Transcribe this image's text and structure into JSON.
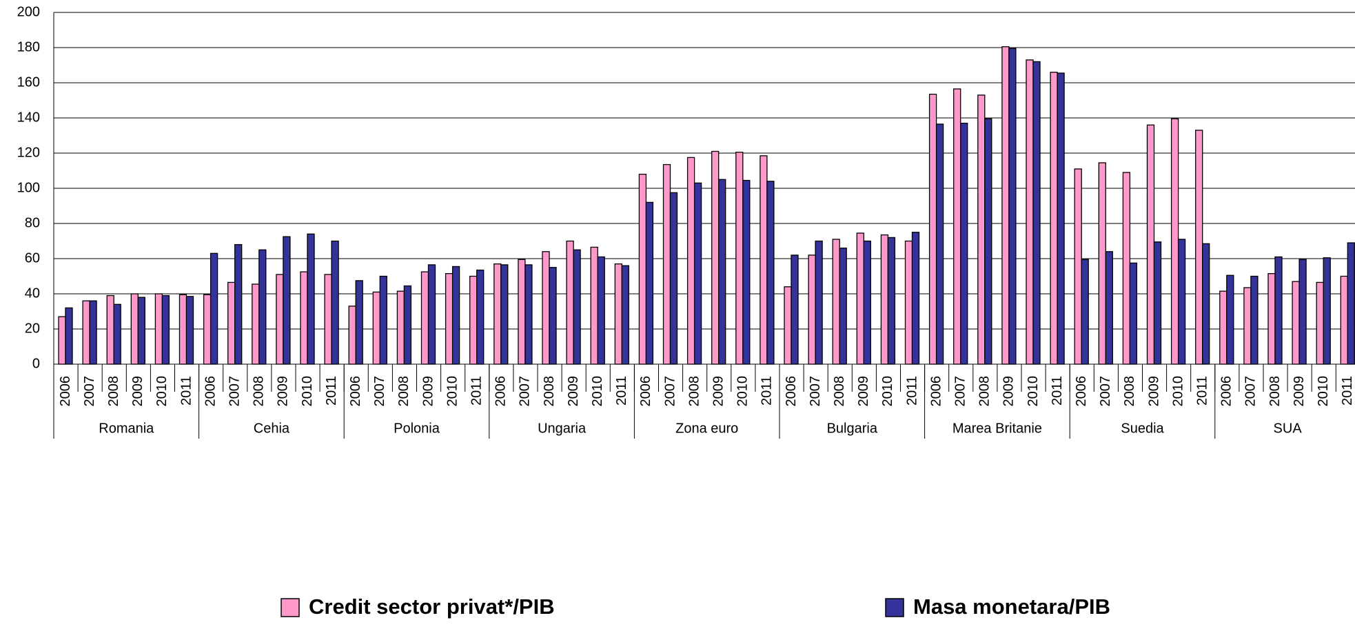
{
  "chart_data": {
    "type": "bar",
    "categories": [
      "2006",
      "2007",
      "2008",
      "2009",
      "2010",
      "2011",
      "2006",
      "2007",
      "2008",
      "2009",
      "2010",
      "2011",
      "2006",
      "2007",
      "2008",
      "2009",
      "2010",
      "2011",
      "2006",
      "2007",
      "2008",
      "2009",
      "2010",
      "2011",
      "2006",
      "2007",
      "2008",
      "2009",
      "2010",
      "2011",
      "2006",
      "2007",
      "2008",
      "2009",
      "2010",
      "2011",
      "2006",
      "2007",
      "2008",
      "2009",
      "2010",
      "2011",
      "2006",
      "2007",
      "2008",
      "2009",
      "2010",
      "2011",
      "2006",
      "2007",
      "2008",
      "2009",
      "2010",
      "2011"
    ],
    "groups": [
      "Romania",
      "Cehia",
      "Polonia",
      "Ungaria",
      "Zona euro",
      "Bulgaria",
      "Marea Britanie",
      "Suedia",
      "SUA"
    ],
    "series": [
      {
        "name": "Credit sector privat*/PIB",
        "color": "#ff99cc",
        "values": [
          27,
          36,
          39,
          40,
          40,
          39.5,
          39.5,
          46.5,
          45.5,
          51,
          52.5,
          51,
          33,
          41,
          41.5,
          52.5,
          51.5,
          50,
          57,
          59.5,
          64,
          70,
          66.5,
          57,
          108,
          113.5,
          117.5,
          121,
          120.5,
          118.5,
          44,
          62,
          71,
          74.5,
          73.5,
          70,
          153.5,
          156.5,
          153,
          180.5,
          173,
          166,
          111,
          114.5,
          109,
          136,
          139.5,
          133,
          41.5,
          43.5,
          51.5,
          47,
          46.5,
          50
        ]
      },
      {
        "name": "Masa monetara/PIB",
        "color": "#333399",
        "values": [
          32,
          36,
          34,
          38,
          39,
          38.5,
          63,
          68,
          65,
          72.5,
          74,
          70,
          47.5,
          50,
          44.5,
          56.5,
          55.5,
          53.5,
          56.5,
          56.5,
          55,
          65,
          61,
          56,
          92,
          97.5,
          103,
          105,
          104.5,
          104,
          62,
          70,
          66,
          70,
          72,
          75,
          136.5,
          137,
          139.5,
          179.5,
          172,
          165.5,
          59.5,
          64,
          57.5,
          69.5,
          71,
          68.5,
          50.5,
          50,
          61,
          59.5,
          60.5,
          69
        ]
      }
    ],
    "ylim": [
      0,
      200
    ],
    "yticks": [
      0,
      20,
      40,
      60,
      80,
      100,
      120,
      140,
      160,
      180,
      200
    ],
    "grid": true
  }
}
